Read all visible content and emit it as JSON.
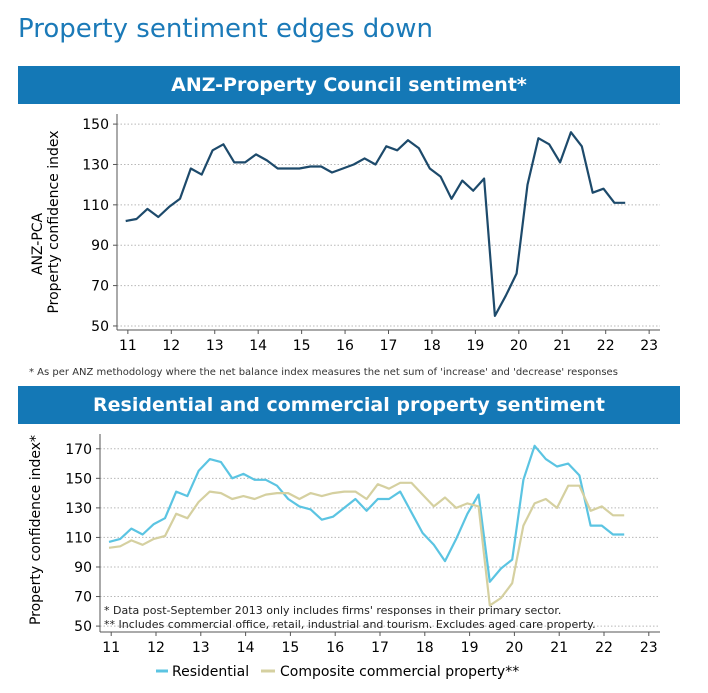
{
  "page": {
    "title": "Property sentiment edges down"
  },
  "chart_data": [
    {
      "type": "line",
      "title": "ANZ-Property Council sentiment*",
      "ylabel_line1": "ANZ-PCA",
      "ylabel_line2": "Property confidence index",
      "xlabel": "",
      "xlim": [
        10.75,
        23.25
      ],
      "ylim": [
        48,
        155
      ],
      "yticks": [
        50,
        70,
        90,
        110,
        130,
        150
      ],
      "xticks": [
        11,
        12,
        13,
        14,
        15,
        16,
        17,
        18,
        19,
        20,
        21,
        22,
        23
      ],
      "footnote": "* As per ANZ methodology where the net balance index measures the net sum of 'increase' and 'decrease' responses",
      "series": [
        {
          "name": "ANZ-PCA",
          "color": "#1d4a6b",
          "x": [
            10.95,
            11.2,
            11.45,
            11.7,
            11.95,
            12.2,
            12.45,
            12.7,
            12.95,
            13.2,
            13.45,
            13.7,
            13.95,
            14.2,
            14.45,
            14.7,
            14.95,
            15.2,
            15.45,
            15.7,
            15.95,
            16.2,
            16.45,
            16.7,
            16.95,
            17.2,
            17.45,
            17.7,
            17.95,
            18.2,
            18.45,
            18.7,
            18.95,
            19.2,
            19.45,
            19.7,
            19.95,
            20.2,
            20.45,
            20.7,
            20.95,
            21.2,
            21.45,
            21.7,
            21.95,
            22.2,
            22.45
          ],
          "y": [
            102,
            103,
            108,
            104,
            109,
            113,
            128,
            125,
            137,
            140,
            131,
            131,
            135,
            132,
            128,
            128,
            128,
            129,
            129,
            126,
            128,
            130,
            133,
            130,
            139,
            137,
            142,
            138,
            128,
            124,
            113,
            122,
            117,
            123,
            55,
            65,
            76,
            120,
            143,
            140,
            131,
            146,
            139,
            116,
            118,
            111,
            111
          ]
        }
      ]
    },
    {
      "type": "line",
      "title": "Residential and commercial property sentiment",
      "ylabel": "Property confidence index*",
      "xlabel": "",
      "xlim": [
        10.75,
        23.25
      ],
      "ylim": [
        46,
        180
      ],
      "yticks": [
        50,
        70,
        90,
        110,
        130,
        150,
        170
      ],
      "xticks": [
        11,
        12,
        13,
        14,
        15,
        16,
        17,
        18,
        19,
        20,
        21,
        22,
        23
      ],
      "notes": [
        "* Data post-September 2013 only includes firms' responses in their primary sector.",
        "** Includes commercial office, retail, industrial and tourism. Excludes aged care property."
      ],
      "series": [
        {
          "name": "Residential",
          "color": "#5bc4e2",
          "x": [
            10.95,
            11.2,
            11.45,
            11.7,
            11.95,
            12.2,
            12.45,
            12.7,
            12.95,
            13.2,
            13.45,
            13.7,
            13.95,
            14.2,
            14.45,
            14.7,
            14.95,
            15.2,
            15.45,
            15.7,
            15.95,
            16.2,
            16.45,
            16.7,
            16.95,
            17.2,
            17.45,
            17.7,
            17.95,
            18.2,
            18.45,
            18.7,
            18.95,
            19.2,
            19.45,
            19.7,
            19.95,
            20.2,
            20.45,
            20.7,
            20.95,
            21.2,
            21.45,
            21.7,
            21.95,
            22.2,
            22.45
          ],
          "y": [
            107,
            109,
            116,
            112,
            119,
            123,
            141,
            138,
            155,
            163,
            161,
            150,
            153,
            149,
            149,
            145,
            136,
            131,
            129,
            122,
            124,
            130,
            136,
            128,
            136,
            136,
            141,
            127,
            113,
            105,
            94,
            109,
            126,
            139,
            80,
            89,
            95,
            149,
            172,
            163,
            158,
            160,
            152,
            118,
            118,
            112,
            112
          ]
        },
        {
          "name": "Composite commercial property**",
          "color": "#d5d0a0",
          "x": [
            10.95,
            11.2,
            11.45,
            11.7,
            11.95,
            12.2,
            12.45,
            12.7,
            12.95,
            13.2,
            13.45,
            13.7,
            13.95,
            14.2,
            14.45,
            14.7,
            14.95,
            15.2,
            15.45,
            15.7,
            15.95,
            16.2,
            16.45,
            16.7,
            16.95,
            17.2,
            17.45,
            17.7,
            17.95,
            18.2,
            18.45,
            18.7,
            18.95,
            19.2,
            19.45,
            19.7,
            19.95,
            20.2,
            20.45,
            20.7,
            20.95,
            21.2,
            21.45,
            21.7,
            21.95,
            22.2,
            22.45
          ],
          "y": [
            103,
            104,
            108,
            105,
            109,
            111,
            126,
            123,
            134,
            141,
            140,
            136,
            138,
            136,
            139,
            140,
            140,
            136,
            140,
            138,
            140,
            141,
            141,
            136,
            146,
            143,
            147,
            147,
            139,
            131,
            137,
            130,
            133,
            131,
            64,
            69,
            79,
            118,
            133,
            136,
            130,
            145,
            145,
            128,
            131,
            125,
            125
          ]
        }
      ]
    }
  ]
}
